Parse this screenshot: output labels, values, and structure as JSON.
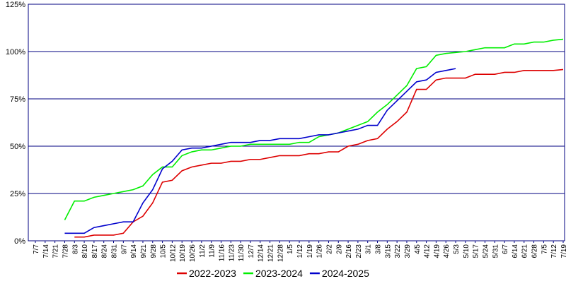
{
  "chart_data": {
    "type": "line",
    "categories": [
      "7/7",
      "7/14",
      "7/21",
      "7/28",
      "8/3",
      "8/10",
      "8/17",
      "8/24",
      "8/31",
      "9/7",
      "9/14",
      "9/21",
      "9/28",
      "10/5",
      "10/12",
      "10/19",
      "10/26",
      "11/2",
      "11/9",
      "11/16",
      "11/23",
      "11/30",
      "12/7",
      "12/14",
      "12/21",
      "12/28",
      "1/5",
      "1/12",
      "1/19",
      "1/26",
      "2/2",
      "2/9",
      "2/16",
      "2/23",
      "3/1",
      "3/8",
      "3/15",
      "3/22",
      "3/29",
      "4/5",
      "4/12",
      "4/19",
      "4/26",
      "5/3",
      "5/10",
      "5/17",
      "5/24",
      "5/31",
      "6/7",
      "6/14",
      "6/21",
      "6/28",
      "7/5",
      "7/12",
      "7/19"
    ],
    "series": [
      {
        "name": "2022-2023",
        "color": "#dd0000",
        "values": [
          null,
          null,
          null,
          null,
          2,
          2,
          3,
          3,
          3,
          4,
          10,
          13,
          20,
          31,
          32,
          37,
          39,
          40,
          41,
          41,
          42,
          42,
          43,
          43,
          44,
          45,
          45,
          45,
          46,
          46,
          47,
          47,
          50,
          51,
          53,
          54,
          59,
          63,
          68,
          80,
          80,
          85,
          86,
          86,
          86,
          88,
          88,
          88,
          89,
          89,
          90,
          90,
          90,
          90,
          90.5
        ]
      },
      {
        "name": "2023-2024",
        "color": "#00ee00",
        "values": [
          null,
          null,
          null,
          11,
          21,
          21,
          23,
          24,
          25,
          26,
          27,
          29,
          35,
          39,
          39,
          45,
          47,
          48,
          48,
          49,
          50,
          50,
          51,
          51,
          51,
          51,
          51,
          52,
          52,
          55,
          56,
          57,
          59,
          61,
          63,
          68,
          72,
          77,
          82,
          91,
          92,
          98,
          99,
          99.5,
          100,
          101,
          102,
          102,
          102,
          104,
          104,
          105,
          105,
          106,
          106.5
        ]
      },
      {
        "name": "2024-2025",
        "color": "#0000cc",
        "values": [
          null,
          null,
          null,
          4,
          4,
          4,
          7,
          8,
          9,
          10,
          10,
          20,
          27,
          38,
          42,
          48,
          49,
          49,
          50,
          51,
          52,
          52,
          52,
          53,
          53,
          54,
          54,
          54,
          55,
          56,
          56,
          57,
          58,
          59,
          61,
          61,
          69,
          74,
          79,
          84,
          85,
          89,
          90,
          91,
          null,
          null,
          null,
          null,
          null,
          null,
          null,
          null,
          null,
          null,
          null
        ]
      }
    ],
    "ylim": [
      0,
      125
    ],
    "yticks": [
      {
        "value": 0,
        "label": "0%"
      },
      {
        "value": 25,
        "label": "25%"
      },
      {
        "value": 50,
        "label": "50%"
      },
      {
        "value": 75,
        "label": "75%"
      },
      {
        "value": 100,
        "label": "100%"
      },
      {
        "value": 125,
        "label": "125%"
      }
    ],
    "grid": true,
    "grid_color": "#000080",
    "legend": "bottom"
  }
}
